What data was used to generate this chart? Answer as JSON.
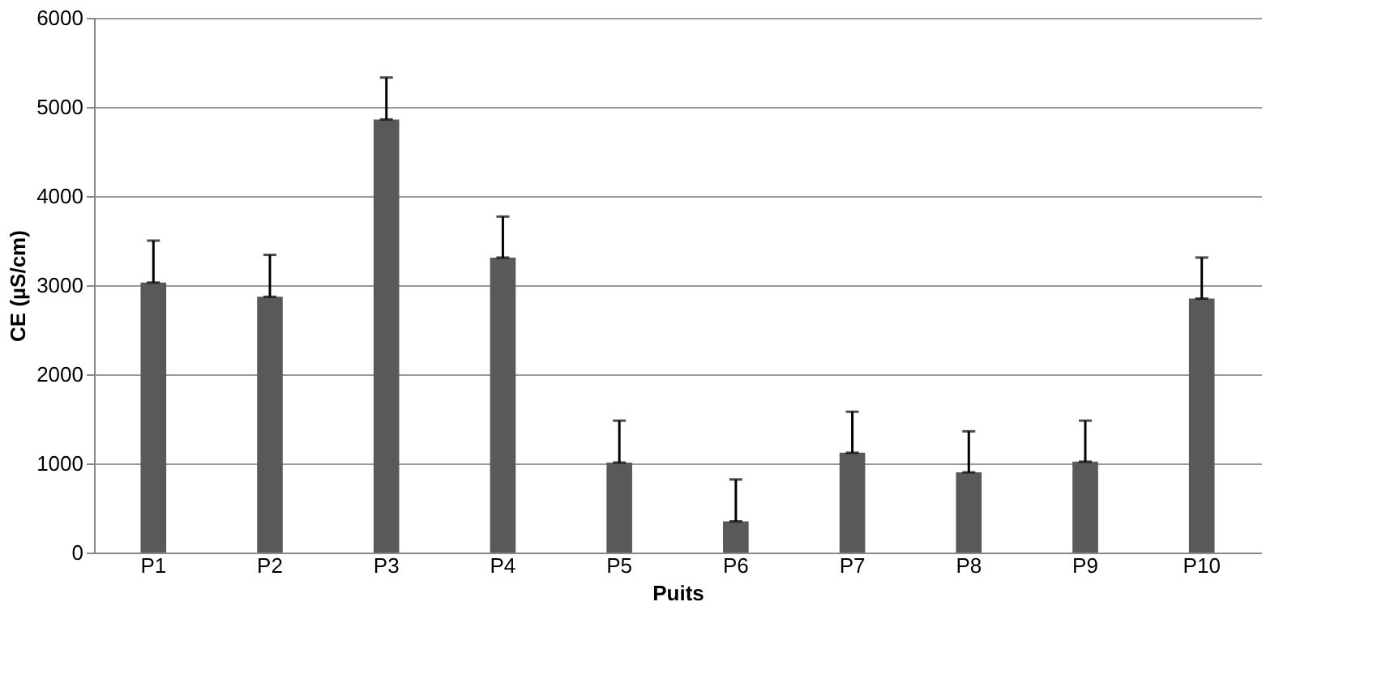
{
  "chart_data": {
    "type": "bar",
    "xlabel": "Puits",
    "ylabel": "CE (µS/cm)",
    "categories": [
      "P1",
      "P2",
      "P3",
      "P4",
      "P5",
      "P6",
      "P7",
      "P8",
      "P9",
      "P10"
    ],
    "values": [
      3030,
      2870,
      4860,
      3310,
      1010,
      350,
      1120,
      900,
      1020,
      2850
    ],
    "errors": [
      [
        3030,
        3500
      ],
      [
        2870,
        3340
      ],
      [
        4860,
        5330
      ],
      [
        3310,
        3770
      ],
      [
        1010,
        1480
      ],
      [
        350,
        820
      ],
      [
        1120,
        1580
      ],
      [
        900,
        1360
      ],
      [
        1020,
        1480
      ],
      [
        2850,
        3310
      ]
    ],
    "color": "#595959",
    "ylim": [
      0,
      6000
    ],
    "yticks": [
      0,
      1000,
      2000,
      3000,
      4000,
      5000,
      6000
    ],
    "grid": "y"
  }
}
